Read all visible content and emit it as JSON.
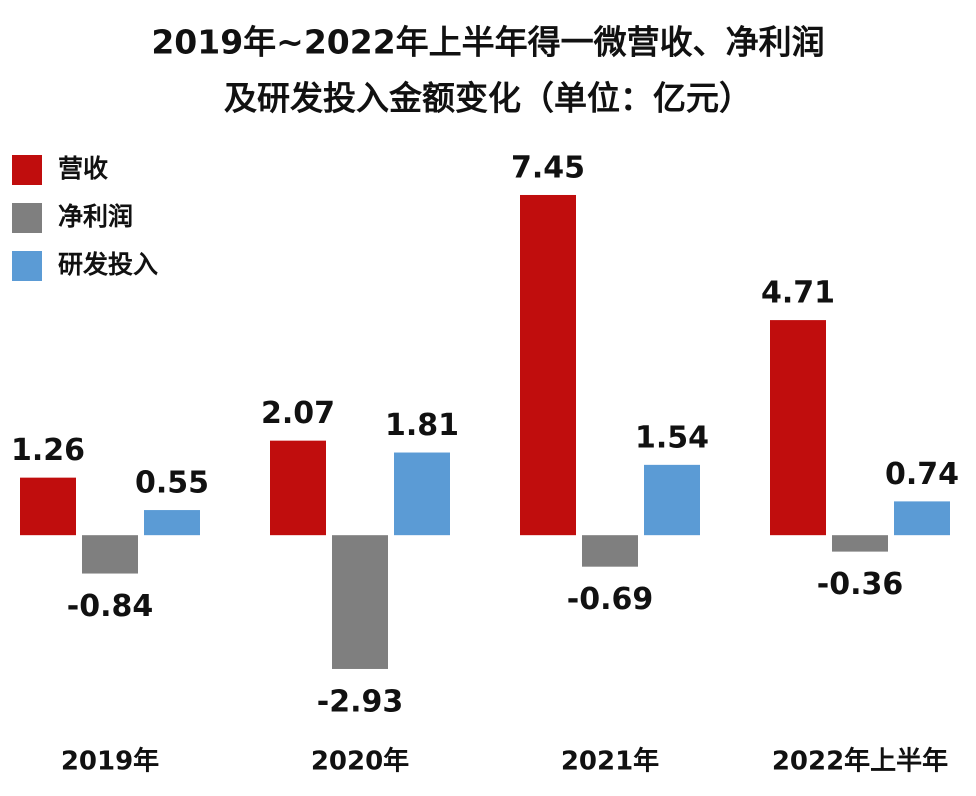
{
  "chart_data": {
    "type": "bar",
    "title": [
      "2019年~2022年上半年得一微营收、净利润",
      "及研发投入金额变化（单位：亿元）"
    ],
    "categories": [
      "2019年",
      "2020年",
      "2021年",
      "2022年上半年"
    ],
    "series": [
      {
        "name": "营收",
        "color": "#c00d0d",
        "values": [
          1.26,
          2.07,
          7.45,
          4.71
        ]
      },
      {
        "name": "净利润",
        "color": "#7f7f7f",
        "values": [
          -0.84,
          -2.93,
          -0.69,
          -0.36
        ]
      },
      {
        "name": "研发投入",
        "color": "#5b9bd5",
        "values": [
          0.55,
          1.81,
          1.54,
          0.74
        ]
      }
    ],
    "ylim": [
      -3.5,
      7.8
    ],
    "legend": "upper left"
  }
}
